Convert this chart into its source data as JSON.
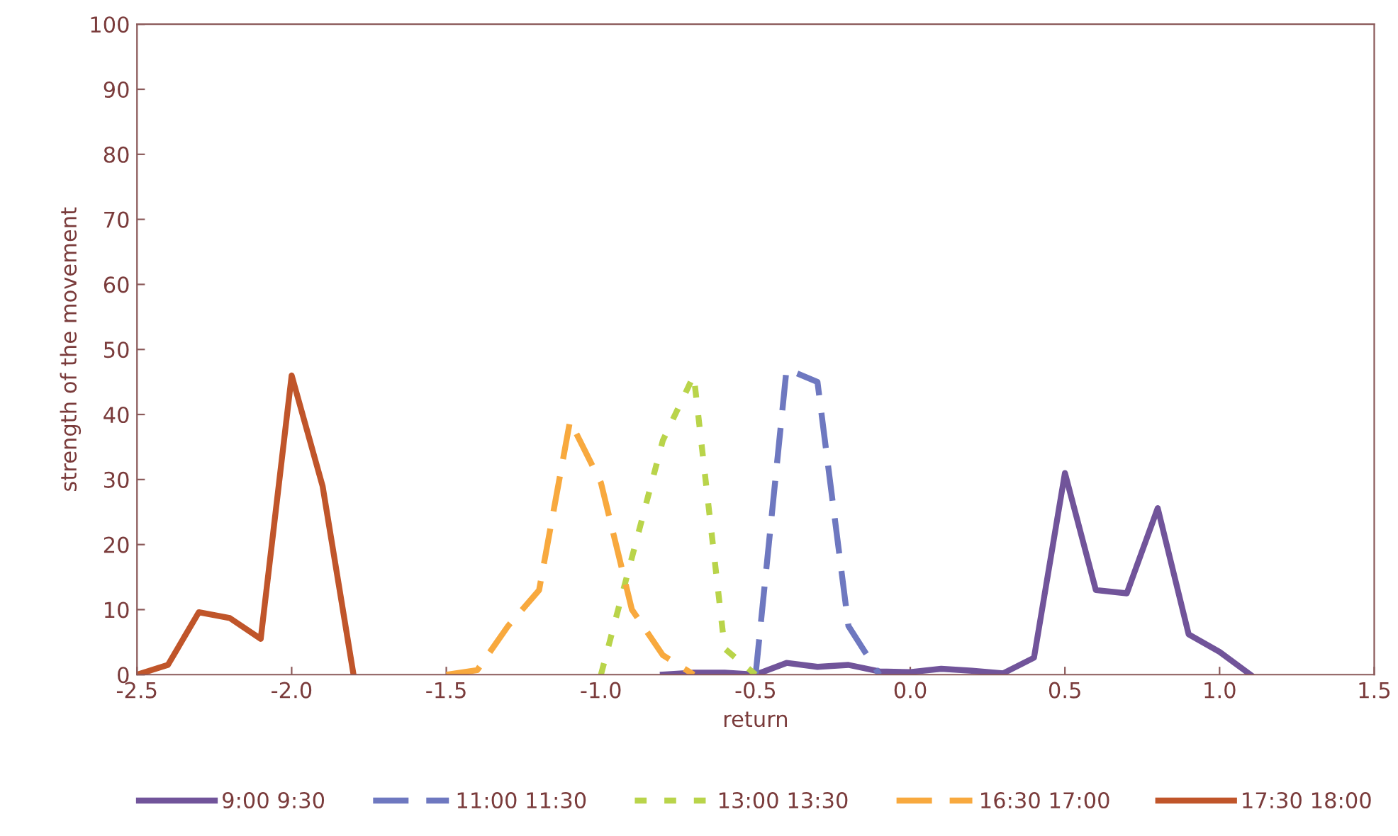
{
  "chart_data": {
    "type": "line",
    "xlabel": "return",
    "ylabel": "strength of the movement",
    "xlim": [
      -2.5,
      1.5
    ],
    "xticks": [
      {
        "value": -2.5,
        "label": "-2.5"
      },
      {
        "value": -2.0,
        "label": "-2.0"
      },
      {
        "value": -1.5,
        "label": "-1.5"
      },
      {
        "value": -1.0,
        "label": "-1.0"
      },
      {
        "value": -0.5,
        "label": "-0.5"
      },
      {
        "value": 0.0,
        "label": "0.0"
      },
      {
        "value": 0.5,
        "label": "0.5"
      },
      {
        "value": 1.0,
        "label": "1.0"
      },
      {
        "value": 1.5,
        "label": "1.5"
      }
    ],
    "ylim": [
      0,
      100
    ],
    "yticks": [
      0,
      10,
      20,
      30,
      40,
      50,
      60,
      70,
      80,
      90,
      100
    ],
    "grid": false,
    "legend": "bottom",
    "marker": "none",
    "series": [
      {
        "name": "9:00 9:30",
        "color": "#71549a",
        "line_style": "solid",
        "x": [
          -0.8,
          -0.7,
          -0.6,
          -0.5,
          -0.4,
          -0.3,
          -0.2,
          -0.1,
          0.0,
          0.1,
          0.2,
          0.3,
          0.4,
          0.5,
          0.6,
          0.7,
          0.8,
          0.9,
          1.0,
          1.1
        ],
        "values": [
          0,
          0.3,
          0.3,
          0,
          1.8,
          1.2,
          1.5,
          0.5,
          0.4,
          0.9,
          0.6,
          0.2,
          2.6,
          31,
          13,
          12.5,
          25.6,
          6.2,
          3.5,
          0
        ]
      },
      {
        "name": "11:00 11:30",
        "color": "#6e78c0",
        "line_style": "dashed",
        "x": [
          -0.5,
          -0.4,
          -0.3,
          -0.2,
          -0.1
        ],
        "values": [
          0,
          47,
          45,
          7.5,
          0
        ]
      },
      {
        "name": "13:00 13:30",
        "color": "#b9d44a",
        "line_style": "dotted",
        "x": [
          -1.0,
          -0.9,
          -0.8,
          -0.7,
          -0.6,
          -0.5
        ],
        "values": [
          0,
          18,
          36,
          46,
          4,
          0
        ]
      },
      {
        "name": "16:30 17:00",
        "color": "#f8a93e",
        "line_style": "dashed",
        "x": [
          -1.5,
          -1.4,
          -1.3,
          -1.2,
          -1.1,
          -1.0,
          -0.9,
          -0.8,
          -0.7
        ],
        "values": [
          0,
          0.7,
          7.5,
          13,
          39,
          29.5,
          10,
          3,
          0
        ]
      },
      {
        "name": "17:30 18:00",
        "color": "#c0552a",
        "line_style": "solid",
        "x": [
          -2.5,
          -2.4,
          -2.3,
          -2.2,
          -2.1,
          -2.0,
          -1.9,
          -1.8
        ],
        "values": [
          0,
          1.5,
          9.6,
          8.7,
          5.5,
          46,
          29,
          0
        ]
      }
    ]
  }
}
